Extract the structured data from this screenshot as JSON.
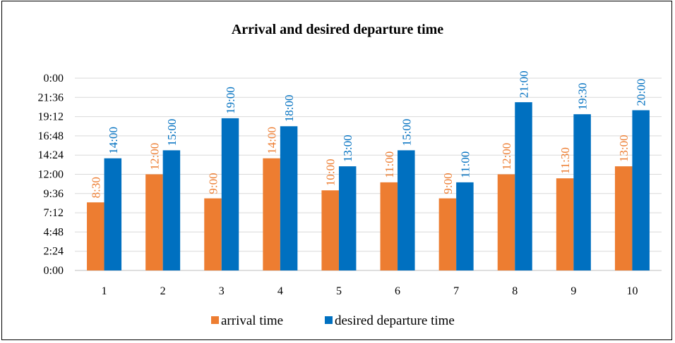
{
  "chart_data": {
    "type": "bar",
    "title": "Arrival and desired departure time",
    "xlabel": "",
    "ylabel": "",
    "categories": [
      "1",
      "2",
      "3",
      "4",
      "5",
      "6",
      "7",
      "8",
      "9",
      "10"
    ],
    "y_unit": "time of day (minutes since 0:00)",
    "ylim": [
      0,
      1440
    ],
    "yticks": [
      {
        "value": 0,
        "label": "0:00"
      },
      {
        "value": 144,
        "label": "2:24"
      },
      {
        "value": 288,
        "label": "4:48"
      },
      {
        "value": 432,
        "label": "7:12"
      },
      {
        "value": 576,
        "label": "9:36"
      },
      {
        "value": 720,
        "label": "12:00"
      },
      {
        "value": 864,
        "label": "14:24"
      },
      {
        "value": 1008,
        "label": "16:48"
      },
      {
        "value": 1152,
        "label": "19:12"
      },
      {
        "value": 1296,
        "label": "21:36"
      },
      {
        "value": 1440,
        "label": "0:00"
      }
    ],
    "series": [
      {
        "name": "arrival time",
        "color": "#ED7D31",
        "values": [
          510,
          720,
          540,
          840,
          600,
          660,
          540,
          720,
          690,
          780
        ],
        "labels": [
          "8:30",
          "12:00",
          "9:00",
          "14:00",
          "10:00",
          "11:00",
          "9:00",
          "12:00",
          "11:30",
          "13:00"
        ]
      },
      {
        "name": "desired departure time",
        "color": "#0070C0",
        "values": [
          840,
          900,
          1140,
          1080,
          780,
          900,
          660,
          1260,
          1170,
          1200
        ],
        "labels": [
          "14:00",
          "15:00",
          "19:00",
          "18:00",
          "13:00",
          "15:00",
          "11:00",
          "21:00",
          "19:30",
          "20:00"
        ]
      }
    ],
    "grid": true,
    "legend_position": "bottom"
  }
}
